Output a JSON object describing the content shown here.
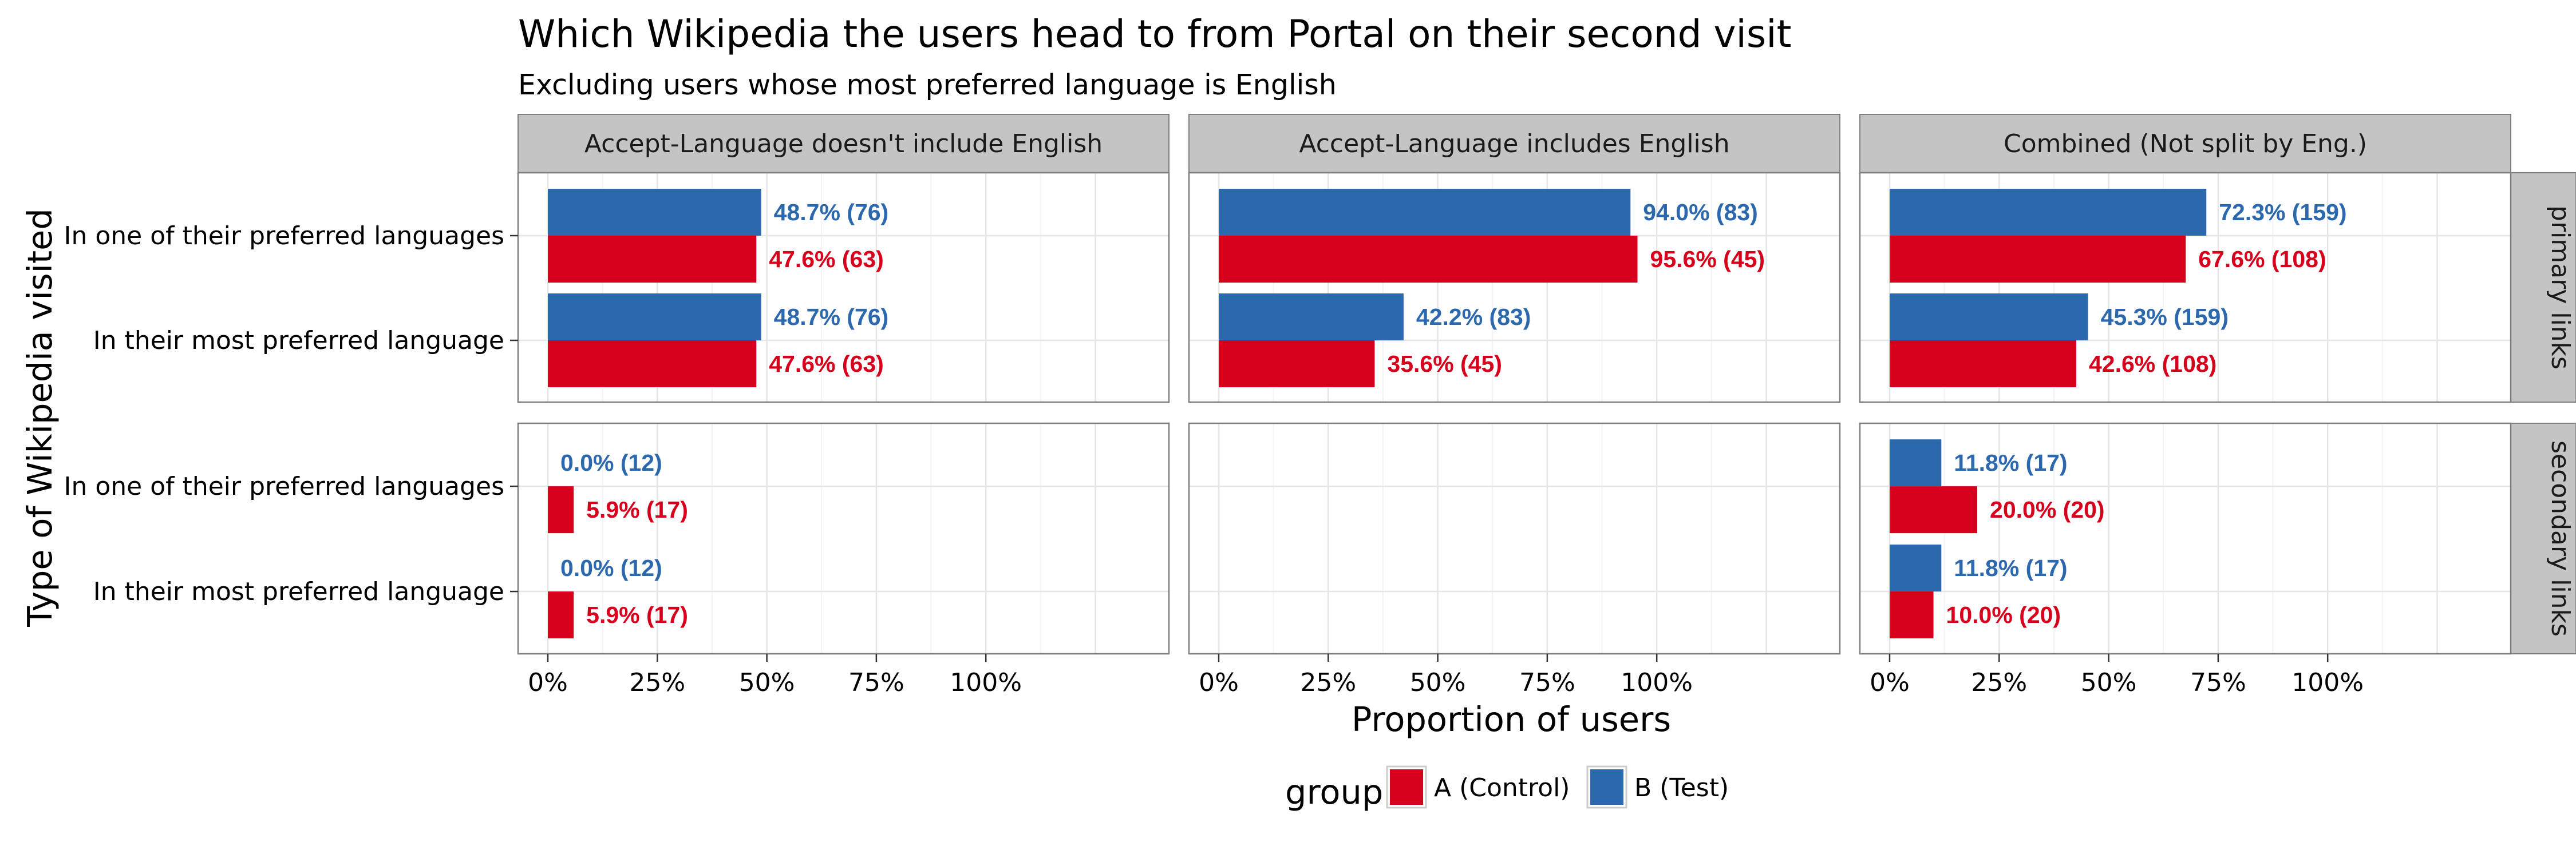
{
  "chart_data": {
    "type": "bar",
    "orientation": "horizontal",
    "title": "Which Wikipedia the users head to from Portal on their second visit",
    "subtitle": "Excluding users whose most preferred language is English",
    "xlabel": "Proportion of users",
    "ylabel": "Type of Wikipedia visited",
    "xlim": [
      0,
      1.35
    ],
    "x_ticks": [
      "0%",
      "25%",
      "50%",
      "75%",
      "100%"
    ],
    "categories": [
      "In one of their preferred languages",
      "In their most preferred language"
    ],
    "column_facets": [
      "Accept-Language doesn't include English",
      "Accept-Language includes English",
      "Combined (Not split by Eng.)"
    ],
    "row_facets": [
      "primary links",
      "secondary links"
    ],
    "grid": true,
    "legend": {
      "title": "group",
      "position": "bottom",
      "entries": [
        {
          "name": "A (Control)",
          "color": "#D7001C"
        },
        {
          "name": "B (Test)",
          "color": "#2B68AD"
        }
      ]
    },
    "colors": {
      "A (Control)": "#D7001C",
      "B (Test)": "#2B68AD"
    },
    "panels": [
      {
        "column": 0,
        "row": 0,
        "bars": [
          {
            "category": 0,
            "group": "B (Test)",
            "value": 0.487,
            "label": "48.7% (76)"
          },
          {
            "category": 0,
            "group": "A (Control)",
            "value": 0.476,
            "label": "47.6% (63)"
          },
          {
            "category": 1,
            "group": "B (Test)",
            "value": 0.487,
            "label": "48.7% (76)"
          },
          {
            "category": 1,
            "group": "A (Control)",
            "value": 0.476,
            "label": "47.6% (63)"
          }
        ]
      },
      {
        "column": 1,
        "row": 0,
        "bars": [
          {
            "category": 0,
            "group": "B (Test)",
            "value": 0.94,
            "label": "94.0% (83)"
          },
          {
            "category": 0,
            "group": "A (Control)",
            "value": 0.956,
            "label": "95.6% (45)"
          },
          {
            "category": 1,
            "group": "B (Test)",
            "value": 0.422,
            "label": "42.2% (83)"
          },
          {
            "category": 1,
            "group": "A (Control)",
            "value": 0.356,
            "label": "35.6% (45)"
          }
        ]
      },
      {
        "column": 2,
        "row": 0,
        "bars": [
          {
            "category": 0,
            "group": "B (Test)",
            "value": 0.723,
            "label": "72.3% (159)"
          },
          {
            "category": 0,
            "group": "A (Control)",
            "value": 0.676,
            "label": "67.6% (108)"
          },
          {
            "category": 1,
            "group": "B (Test)",
            "value": 0.453,
            "label": "45.3% (159)"
          },
          {
            "category": 1,
            "group": "A (Control)",
            "value": 0.426,
            "label": "42.6% (108)"
          }
        ]
      },
      {
        "column": 0,
        "row": 1,
        "bars": [
          {
            "category": 0,
            "group": "B (Test)",
            "value": 0.0,
            "label": "0.0% (12)"
          },
          {
            "category": 0,
            "group": "A (Control)",
            "value": 0.059,
            "label": "5.9% (17)"
          },
          {
            "category": 1,
            "group": "B (Test)",
            "value": 0.0,
            "label": "0.0% (12)"
          },
          {
            "category": 1,
            "group": "A (Control)",
            "value": 0.059,
            "label": "5.9% (17)"
          }
        ]
      },
      {
        "column": 1,
        "row": 1,
        "bars": []
      },
      {
        "column": 2,
        "row": 1,
        "bars": [
          {
            "category": 0,
            "group": "B (Test)",
            "value": 0.118,
            "label": "11.8% (17)"
          },
          {
            "category": 0,
            "group": "A (Control)",
            "value": 0.2,
            "label": "20.0% (20)"
          },
          {
            "category": 1,
            "group": "B (Test)",
            "value": 0.118,
            "label": "11.8% (17)"
          },
          {
            "category": 1,
            "group": "A (Control)",
            "value": 0.1,
            "label": "10.0% (20)"
          }
        ]
      }
    ]
  }
}
